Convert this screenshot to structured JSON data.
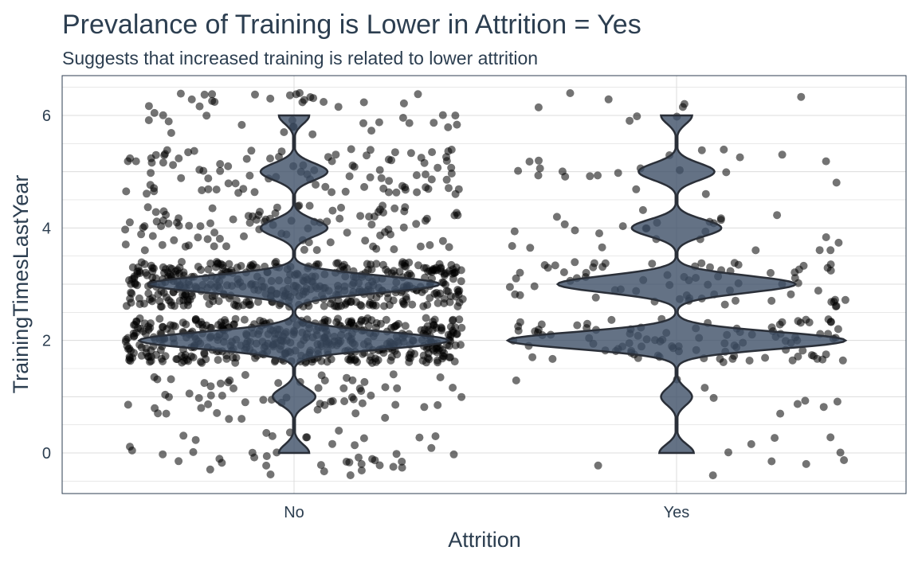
{
  "chart_data": {
    "type": "violin+jitter",
    "title": "Prevalance of Training is Lower in Attrition = Yes",
    "subtitle": "Suggests that increased training is related to lower attrition",
    "xlabel": "Attrition",
    "ylabel": "TrainingTimesLastYear",
    "categories": [
      "No",
      "Yes"
    ],
    "yticks": [
      0,
      2,
      4,
      6
    ],
    "ylim": [
      -0.72,
      6.72
    ],
    "grid": true,
    "counts": {
      "No": {
        "0": 44,
        "1": 62,
        "2": 449,
        "3": 422,
        "4": 97,
        "5": 97,
        "6": 44
      },
      "Yes": {
        "0": 10,
        "1": 9,
        "2": 98,
        "3": 69,
        "4": 26,
        "5": 22,
        "6": 9
      }
    },
    "colors": {
      "violin_fill": "#3d4f66",
      "violin_stroke": "#2a2f38",
      "point": "#000000",
      "text": "#2c3e50",
      "grid": "#dcdcdc",
      "panel_border": "#2c3e50"
    }
  }
}
